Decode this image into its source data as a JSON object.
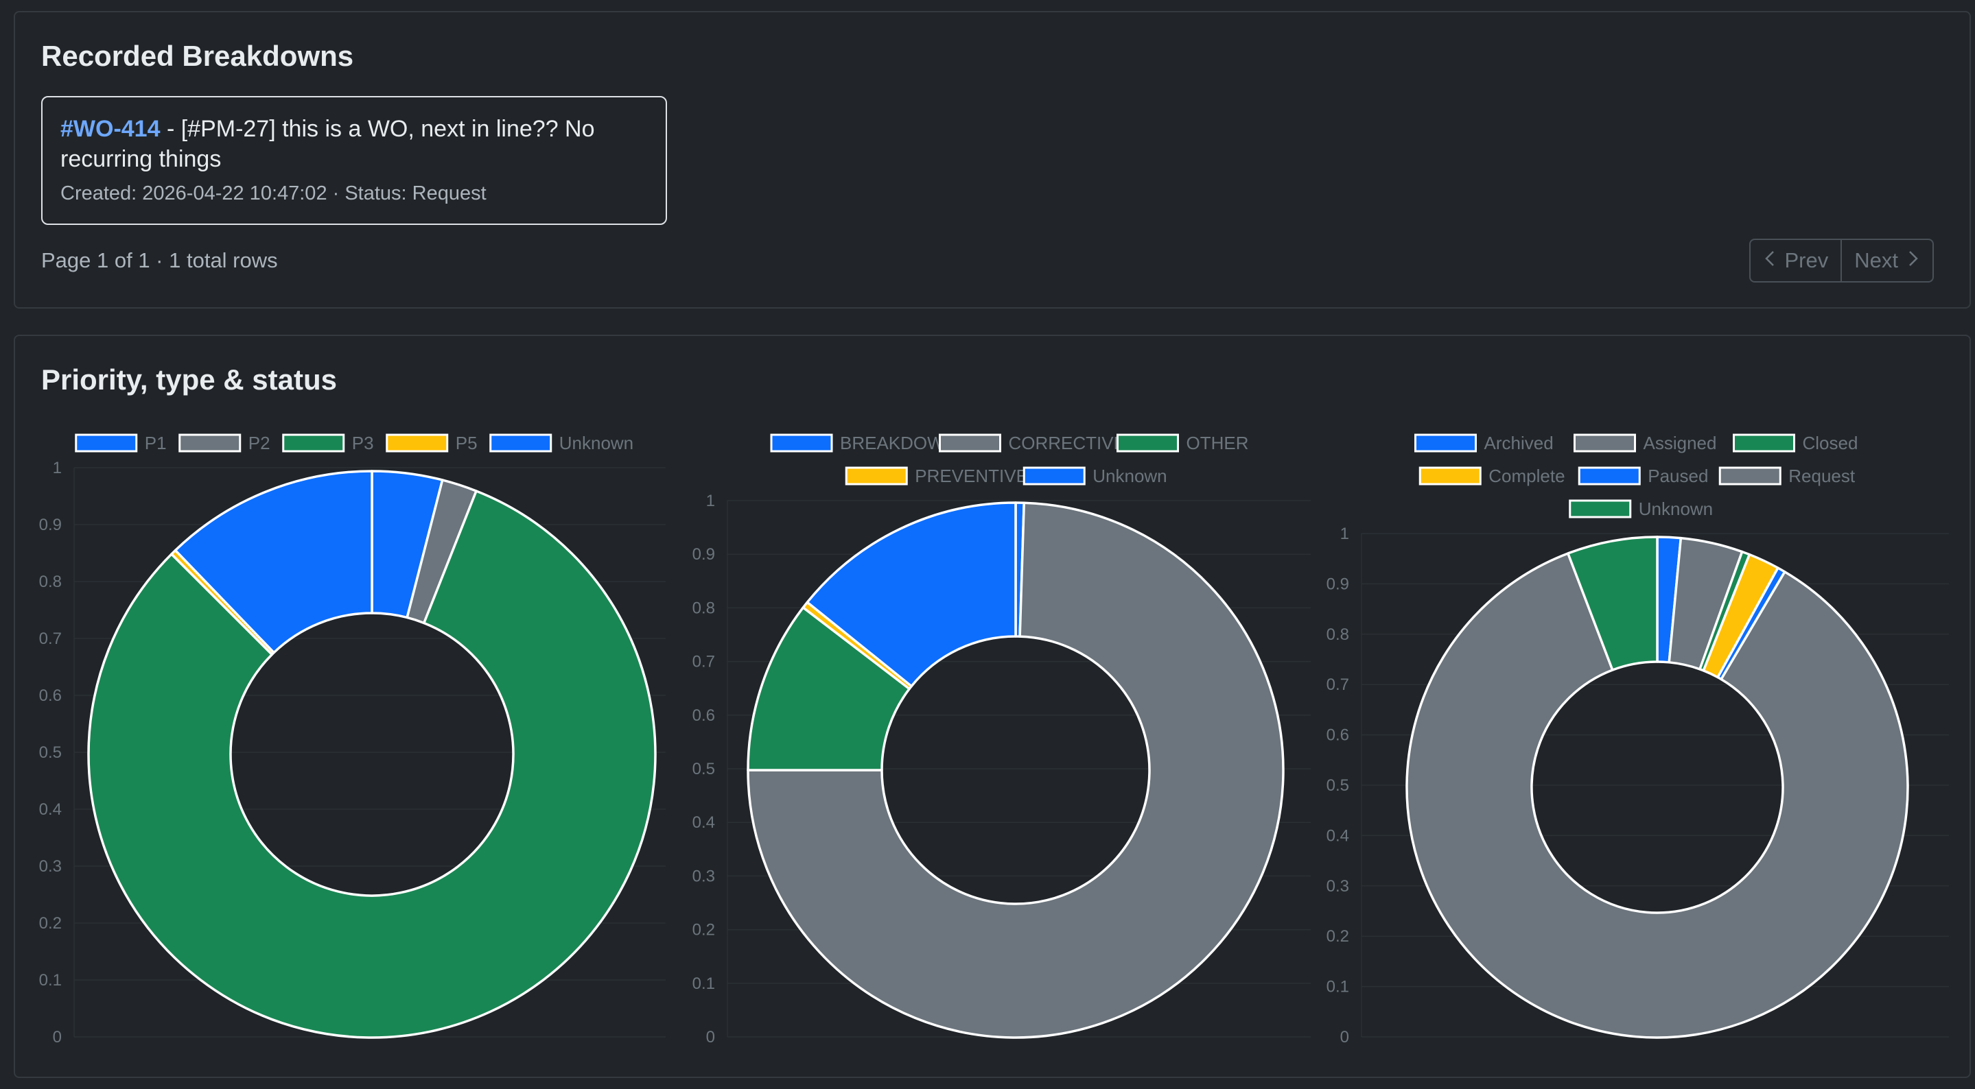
{
  "breakdowns": {
    "title": "Recorded Breakdowns",
    "item": {
      "code": "#WO-414",
      "separator": " - ",
      "description": "[#PM-27] this is a WO, next in line?? No recurring things",
      "meta": "Created: 2026-04-22 10:47:02 · Status: Request"
    },
    "page_info": "Page 1 of 1 · 1 total rows",
    "prev_label": "Prev",
    "next_label": "Next"
  },
  "charts_section": {
    "title": "Priority, type & status"
  },
  "colors": {
    "blue": "#0d6efd",
    "gray": "#6c757d",
    "green": "#198754",
    "yellow": "#ffc107"
  },
  "chart_data": [
    {
      "type": "doughnut",
      "title": "",
      "categories": [
        "P1",
        "P2",
        "P3",
        "P5",
        "Unknown"
      ],
      "values": [
        0.04,
        0.02,
        0.815,
        0.003,
        0.122
      ],
      "colors": [
        "#0d6efd",
        "#6c757d",
        "#198754",
        "#ffc107",
        "#0d6efd"
      ],
      "ylim": [
        0,
        1
      ],
      "yticks": [
        "0",
        "0.1",
        "0.2",
        "0.3",
        "0.4",
        "0.5",
        "0.6",
        "0.7",
        "0.8",
        "0.9",
        "1"
      ],
      "legend": "top",
      "grid": true
    },
    {
      "type": "doughnut",
      "title": "",
      "categories": [
        "BREAKDOWN",
        "CORRECTIVE",
        "OTHER",
        "PREVENTIVE",
        "Unknown"
      ],
      "values": [
        0.005,
        0.745,
        0.104,
        0.004,
        0.142
      ],
      "colors": [
        "#0d6efd",
        "#6c757d",
        "#198754",
        "#ffc107",
        "#0d6efd"
      ],
      "ylim": [
        0,
        1
      ],
      "yticks": [
        "0",
        "0.1",
        "0.2",
        "0.3",
        "0.4",
        "0.5",
        "0.6",
        "0.7",
        "0.8",
        "0.9",
        "1"
      ],
      "legend": "top",
      "grid": true
    },
    {
      "type": "doughnut",
      "title": "",
      "categories": [
        "Archived",
        "Assigned",
        "Closed",
        "Complete",
        "Paused",
        "Request",
        "Unknown"
      ],
      "values": [
        0.015,
        0.04,
        0.005,
        0.02,
        0.005,
        0.857,
        0.058
      ],
      "colors": [
        "#0d6efd",
        "#6c757d",
        "#198754",
        "#ffc107",
        "#0d6efd",
        "#6c757d",
        "#198754"
      ],
      "ylim": [
        0,
        1
      ],
      "yticks": [
        "0",
        "0.1",
        "0.2",
        "0.3",
        "0.4",
        "0.5",
        "0.6",
        "0.7",
        "0.8",
        "0.9",
        "1"
      ],
      "legend": "top",
      "grid": true
    }
  ]
}
